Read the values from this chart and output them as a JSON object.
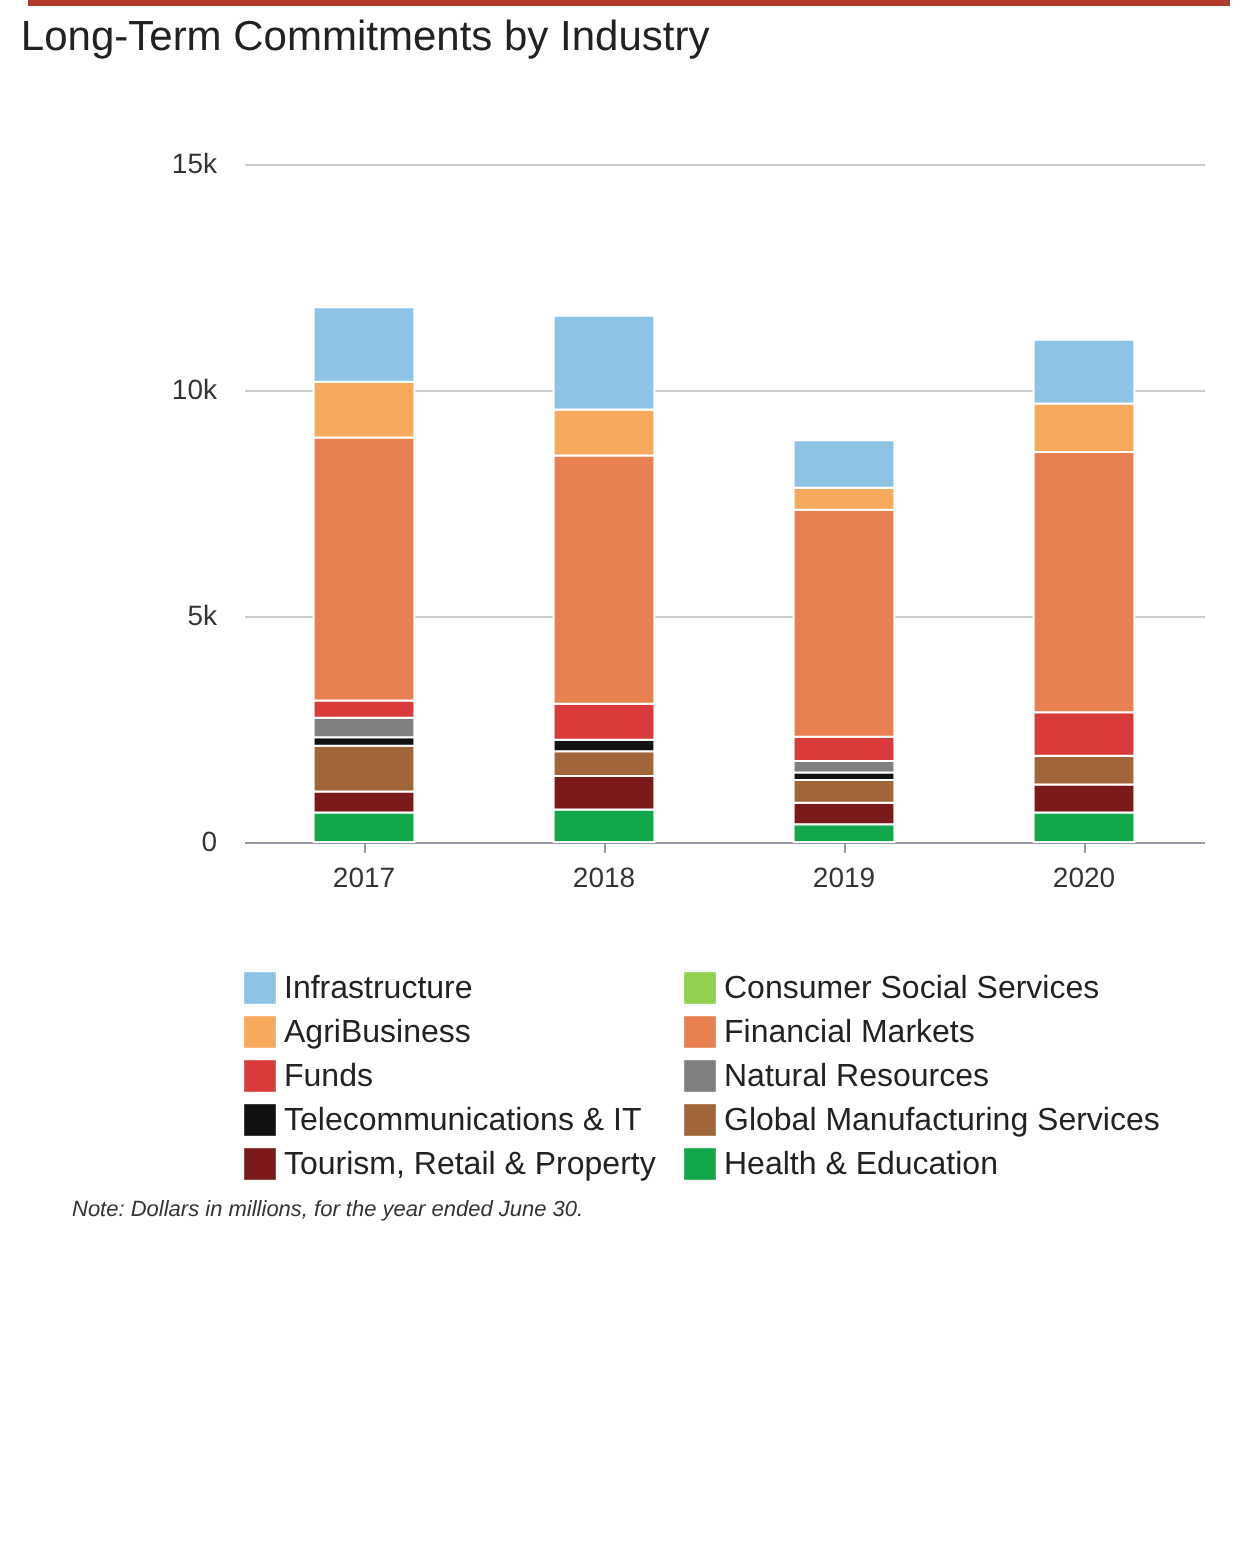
{
  "chart_data": {
    "type": "bar",
    "title": "Long-Term Commitments by Industry",
    "stacked": true,
    "categories": [
      "2017",
      "2018",
      "2019",
      "2020"
    ],
    "series": [
      {
        "name": "Health & Education",
        "color": "#12a84a",
        "values": [
          0.65,
          0.72,
          0.39,
          0.65
        ]
      },
      {
        "name": "Tourism, Retail & Property",
        "color": "#7a1a1a",
        "values": [
          0.47,
          0.74,
          0.48,
          0.62
        ]
      },
      {
        "name": "Global Manufacturing Services",
        "color": "#a0663a",
        "values": [
          1.01,
          0.55,
          0.5,
          0.64
        ]
      },
      {
        "name": "Telecommunications & IT",
        "color": "#111111",
        "values": [
          0.19,
          0.25,
          0.17,
          0
        ]
      },
      {
        "name": "Natural Resources",
        "color": "#808080",
        "values": [
          0.43,
          0,
          0.25,
          0
        ]
      },
      {
        "name": "Funds",
        "color": "#d93a3a",
        "values": [
          0.38,
          0.8,
          0.54,
          0.96
        ]
      },
      {
        "name": "Financial Markets",
        "color": "#e8804f",
        "values": [
          5.82,
          5.49,
          5.02,
          5.76
        ]
      },
      {
        "name": "AgriBusiness",
        "color": "#f7a95c",
        "values": [
          1.23,
          1.02,
          0.49,
          1.07
        ]
      },
      {
        "name": "Consumer Social Services",
        "color": "#92d050",
        "values": [
          0,
          0,
          0,
          0
        ]
      },
      {
        "name": "Infrastructure",
        "color": "#8ec3e6",
        "values": [
          1.65,
          2.07,
          1.05,
          1.41
        ]
      }
    ],
    "ylim": [
      0,
      15
    ],
    "yticks": [
      {
        "value": 0,
        "label": "0"
      },
      {
        "value": 5,
        "label": "5k"
      },
      {
        "value": 10,
        "label": "10k"
      },
      {
        "value": 15,
        "label": "15k"
      }
    ],
    "grid": "y",
    "legend": "bottom",
    "annotations": [
      "Note: Dollars in millions, for the year ended June 30."
    ]
  }
}
